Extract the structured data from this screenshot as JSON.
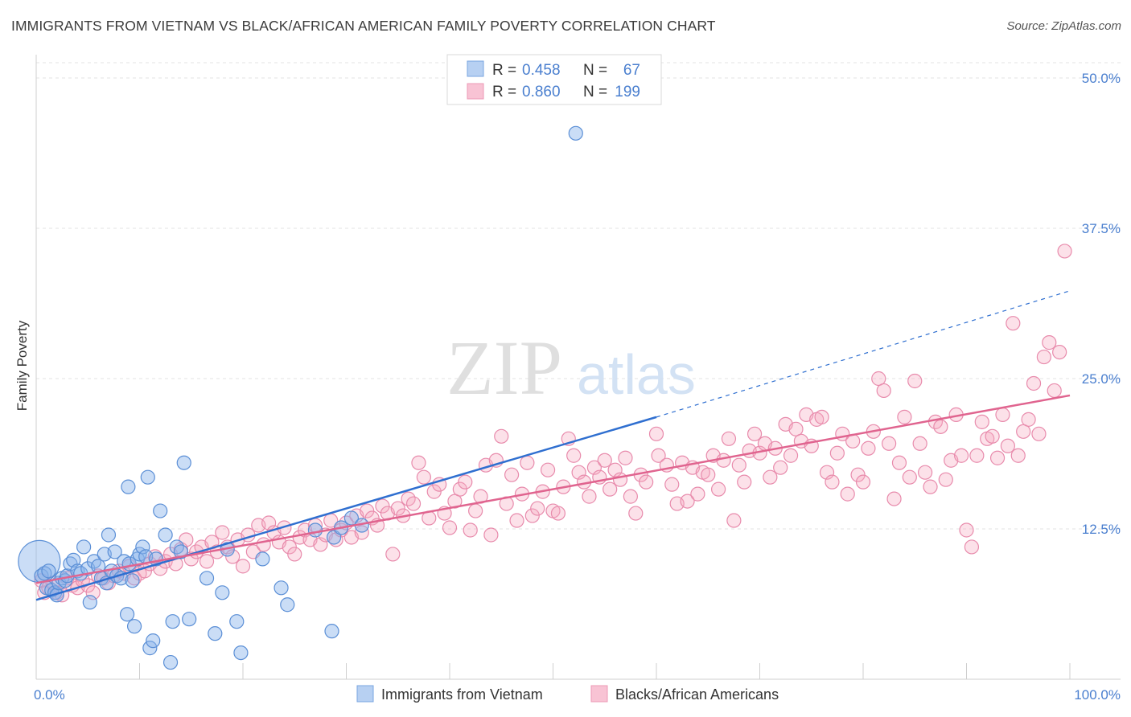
{
  "title": "IMMIGRANTS FROM VIETNAM VS BLACK/AFRICAN AMERICAN FAMILY POVERTY CORRELATION CHART",
  "source": "Source: ZipAtlas.com",
  "watermark": {
    "zip": "ZIP",
    "atlas": "atlas"
  },
  "chart_data": {
    "type": "scatter",
    "ylabel": "Family Poverty",
    "xlim": [
      0,
      100
    ],
    "ylim": [
      0,
      50
    ],
    "x_tick_labels": [
      {
        "value": 0,
        "label": "0.0%"
      },
      {
        "value": 100,
        "label": "100.0%"
      }
    ],
    "y_tick_labels": [
      {
        "value": 12.5,
        "label": "12.5%"
      },
      {
        "value": 25,
        "label": "25.0%"
      },
      {
        "value": 37.5,
        "label": "37.5%"
      },
      {
        "value": 50,
        "label": "50.0%"
      }
    ],
    "grid": true,
    "legend": {
      "placement": "top-center",
      "entries": [
        {
          "r_label": "R =",
          "r_value": "0.458",
          "n_label": "N =",
          "n_value": "67"
        },
        {
          "r_label": "R =",
          "r_value": "0.860",
          "n_label": "N =",
          "n_value": "199"
        }
      ]
    },
    "bottom_legend": [
      "Immigrants from Vietnam",
      "Blacks/African Americans"
    ],
    "series": [
      {
        "name": "Immigrants from Vietnam",
        "color": "#8ab4ea",
        "stroke": "#5b8fd6",
        "trend": {
          "x0": 0,
          "y0": 6.6,
          "x1": 60,
          "y1": 21.8,
          "dash_to_x": 100,
          "dash_to_y": 32.3,
          "color": "#2f6fd0"
        },
        "points": [
          [
            0.3,
            9.8
          ],
          [
            0.5,
            8.6
          ],
          [
            0.8,
            8.8
          ],
          [
            1.0,
            7.6
          ],
          [
            1.2,
            9.0
          ],
          [
            1.5,
            7.4
          ],
          [
            1.8,
            7.2
          ],
          [
            2.0,
            7.0
          ],
          [
            2.2,
            8.0
          ],
          [
            2.5,
            8.4
          ],
          [
            2.8,
            8.2
          ],
          [
            3.0,
            8.6
          ],
          [
            3.3,
            9.6
          ],
          [
            3.6,
            9.9
          ],
          [
            4.0,
            9.0
          ],
          [
            4.3,
            8.8
          ],
          [
            4.6,
            11.0
          ],
          [
            5.0,
            9.2
          ],
          [
            5.2,
            6.4
          ],
          [
            5.6,
            9.8
          ],
          [
            6.0,
            9.4
          ],
          [
            6.3,
            8.4
          ],
          [
            6.6,
            10.4
          ],
          [
            6.8,
            8.0
          ],
          [
            7.0,
            12.0
          ],
          [
            7.3,
            9.0
          ],
          [
            7.6,
            10.6
          ],
          [
            7.8,
            8.6
          ],
          [
            8.2,
            8.4
          ],
          [
            8.5,
            9.8
          ],
          [
            8.8,
            5.4
          ],
          [
            8.9,
            16.0
          ],
          [
            9.0,
            9.6
          ],
          [
            9.3,
            8.2
          ],
          [
            9.5,
            4.4
          ],
          [
            9.8,
            10.0
          ],
          [
            10.0,
            10.4
          ],
          [
            10.3,
            11.0
          ],
          [
            10.6,
            10.2
          ],
          [
            10.8,
            16.8
          ],
          [
            11.0,
            2.6
          ],
          [
            11.3,
            3.2
          ],
          [
            11.6,
            10.0
          ],
          [
            12.0,
            14.0
          ],
          [
            12.5,
            12.0
          ],
          [
            13.0,
            1.4
          ],
          [
            13.2,
            4.8
          ],
          [
            13.6,
            11.0
          ],
          [
            14.0,
            10.6
          ],
          [
            14.3,
            18.0
          ],
          [
            14.8,
            5.0
          ],
          [
            16.5,
            8.4
          ],
          [
            17.3,
            3.8
          ],
          [
            18.0,
            7.2
          ],
          [
            18.5,
            10.8
          ],
          [
            19.4,
            4.8
          ],
          [
            19.8,
            2.2
          ],
          [
            21.9,
            10.0
          ],
          [
            23.7,
            7.6
          ],
          [
            24.3,
            6.2
          ],
          [
            27.0,
            12.4
          ],
          [
            28.6,
            4.0
          ],
          [
            28.8,
            11.8
          ],
          [
            29.5,
            12.6
          ],
          [
            30.5,
            13.4
          ],
          [
            31.5,
            12.8
          ],
          [
            52.2,
            45.4
          ]
        ],
        "bubble_sizes": {
          "0": 26
        }
      },
      {
        "name": "Blacks/African Americans",
        "color": "#f5a9c1",
        "stroke": "#e88bac",
        "trend": {
          "x0": 0,
          "y0": 8.0,
          "x1": 100,
          "y1": 23.6,
          "color": "#e0648f"
        },
        "points": [
          [
            0.5,
            8.2
          ],
          [
            0.8,
            7.2
          ],
          [
            1.2,
            7.6
          ],
          [
            1.6,
            8.0
          ],
          [
            2.0,
            7.2
          ],
          [
            2.5,
            7.0
          ],
          [
            3.0,
            8.4
          ],
          [
            3.5,
            7.8
          ],
          [
            4.0,
            7.6
          ],
          [
            4.5,
            8.2
          ],
          [
            5.0,
            7.8
          ],
          [
            5.5,
            7.2
          ],
          [
            6.0,
            8.6
          ],
          [
            6.5,
            8.4
          ],
          [
            7.0,
            8.0
          ],
          [
            7.5,
            8.6
          ],
          [
            8.0,
            9.0
          ],
          [
            8.5,
            8.8
          ],
          [
            9.0,
            9.4
          ],
          [
            9.5,
            8.4
          ],
          [
            10.0,
            8.8
          ],
          [
            10.5,
            9.0
          ],
          [
            11.0,
            9.6
          ],
          [
            11.5,
            10.2
          ],
          [
            12.0,
            9.2
          ],
          [
            12.5,
            9.8
          ],
          [
            13.0,
            10.4
          ],
          [
            13.5,
            9.6
          ],
          [
            14.0,
            10.8
          ],
          [
            14.5,
            11.6
          ],
          [
            15.0,
            10.0
          ],
          [
            15.5,
            10.6
          ],
          [
            16.0,
            11.0
          ],
          [
            16.5,
            9.8
          ],
          [
            17.0,
            11.4
          ],
          [
            17.5,
            10.6
          ],
          [
            18.0,
            12.2
          ],
          [
            18.5,
            11.0
          ],
          [
            19.0,
            10.2
          ],
          [
            19.5,
            11.6
          ],
          [
            20.0,
            9.4
          ],
          [
            20.5,
            12.0
          ],
          [
            21.0,
            10.6
          ],
          [
            21.5,
            12.8
          ],
          [
            22.0,
            11.2
          ],
          [
            22.5,
            13.0
          ],
          [
            23.0,
            12.2
          ],
          [
            23.5,
            11.4
          ],
          [
            24.0,
            12.6
          ],
          [
            24.5,
            11.0
          ],
          [
            25.0,
            10.4
          ],
          [
            25.5,
            11.8
          ],
          [
            26.0,
            12.4
          ],
          [
            26.5,
            11.6
          ],
          [
            27.0,
            12.8
          ],
          [
            27.5,
            11.2
          ],
          [
            28.0,
            12.0
          ],
          [
            28.5,
            13.2
          ],
          [
            29.0,
            11.6
          ],
          [
            29.5,
            12.4
          ],
          [
            30.0,
            13.0
          ],
          [
            30.5,
            11.8
          ],
          [
            31.0,
            13.6
          ],
          [
            31.5,
            12.2
          ],
          [
            32.0,
            14.0
          ],
          [
            32.5,
            13.4
          ],
          [
            33.0,
            12.8
          ],
          [
            33.5,
            14.4
          ],
          [
            34.0,
            13.8
          ],
          [
            34.5,
            10.4
          ],
          [
            35.0,
            14.2
          ],
          [
            35.5,
            13.6
          ],
          [
            36.0,
            15.0
          ],
          [
            36.5,
            14.6
          ],
          [
            37.0,
            18.0
          ],
          [
            37.5,
            16.8
          ],
          [
            38.0,
            13.4
          ],
          [
            38.5,
            15.6
          ],
          [
            39.0,
            16.2
          ],
          [
            39.5,
            13.8
          ],
          [
            40.0,
            12.6
          ],
          [
            40.5,
            14.8
          ],
          [
            41.0,
            15.8
          ],
          [
            41.5,
            16.4
          ],
          [
            42.0,
            12.4
          ],
          [
            42.5,
            14.0
          ],
          [
            43.0,
            15.2
          ],
          [
            43.5,
            17.8
          ],
          [
            44.0,
            12.0
          ],
          [
            44.5,
            18.2
          ],
          [
            45.0,
            20.2
          ],
          [
            45.5,
            14.6
          ],
          [
            46.0,
            17.0
          ],
          [
            46.5,
            13.2
          ],
          [
            47.0,
            15.4
          ],
          [
            47.5,
            18.0
          ],
          [
            48.0,
            13.6
          ],
          [
            48.5,
            14.2
          ],
          [
            49.0,
            15.6
          ],
          [
            49.5,
            17.4
          ],
          [
            50.0,
            14.0
          ],
          [
            50.5,
            13.8
          ],
          [
            51.0,
            16.0
          ],
          [
            51.5,
            20.0
          ],
          [
            52.0,
            18.6
          ],
          [
            52.5,
            17.2
          ],
          [
            53.0,
            16.4
          ],
          [
            53.5,
            15.2
          ],
          [
            54.0,
            17.6
          ],
          [
            54.5,
            16.8
          ],
          [
            55.0,
            18.2
          ],
          [
            55.5,
            15.8
          ],
          [
            56.0,
            17.4
          ],
          [
            56.5,
            16.6
          ],
          [
            57.0,
            18.4
          ],
          [
            57.5,
            15.2
          ],
          [
            58.0,
            13.8
          ],
          [
            58.5,
            17.0
          ],
          [
            59.0,
            16.4
          ],
          [
            60.0,
            20.4
          ],
          [
            60.2,
            18.6
          ],
          [
            61.0,
            17.8
          ],
          [
            61.5,
            16.2
          ],
          [
            62.0,
            14.6
          ],
          [
            62.5,
            18.0
          ],
          [
            63.0,
            14.8
          ],
          [
            63.5,
            17.6
          ],
          [
            64.0,
            15.4
          ],
          [
            64.5,
            17.2
          ],
          [
            65.0,
            17.0
          ],
          [
            65.5,
            18.6
          ],
          [
            66.0,
            15.8
          ],
          [
            66.5,
            18.2
          ],
          [
            67.0,
            20.0
          ],
          [
            67.5,
            13.2
          ],
          [
            68.0,
            17.8
          ],
          [
            68.5,
            16.4
          ],
          [
            69.0,
            19.0
          ],
          [
            69.5,
            20.4
          ],
          [
            70.0,
            18.8
          ],
          [
            70.5,
            19.6
          ],
          [
            71.0,
            16.8
          ],
          [
            71.5,
            19.2
          ],
          [
            72.0,
            17.6
          ],
          [
            72.5,
            21.2
          ],
          [
            73.0,
            18.6
          ],
          [
            73.5,
            20.8
          ],
          [
            74.0,
            19.8
          ],
          [
            74.5,
            22.0
          ],
          [
            75.0,
            19.4
          ],
          [
            75.5,
            21.6
          ],
          [
            76.0,
            21.8
          ],
          [
            76.5,
            17.2
          ],
          [
            77.0,
            16.4
          ],
          [
            77.5,
            18.8
          ],
          [
            78.0,
            20.4
          ],
          [
            78.5,
            15.4
          ],
          [
            79.0,
            19.8
          ],
          [
            79.5,
            17.0
          ],
          [
            80.0,
            16.4
          ],
          [
            80.5,
            19.2
          ],
          [
            81.0,
            20.6
          ],
          [
            81.5,
            25.0
          ],
          [
            82.0,
            24.0
          ],
          [
            82.5,
            19.6
          ],
          [
            83.0,
            15.0
          ],
          [
            83.5,
            18.0
          ],
          [
            84.0,
            21.8
          ],
          [
            84.5,
            16.8
          ],
          [
            85.0,
            24.8
          ],
          [
            85.5,
            19.6
          ],
          [
            86.0,
            17.2
          ],
          [
            86.5,
            16.0
          ],
          [
            87.0,
            21.4
          ],
          [
            87.5,
            21.0
          ],
          [
            88.0,
            16.6
          ],
          [
            88.5,
            18.2
          ],
          [
            89.0,
            22.0
          ],
          [
            89.5,
            18.6
          ],
          [
            90.0,
            12.4
          ],
          [
            90.5,
            11.0
          ],
          [
            91.0,
            18.6
          ],
          [
            91.5,
            21.4
          ],
          [
            92.0,
            20.0
          ],
          [
            92.5,
            20.2
          ],
          [
            93.0,
            18.4
          ],
          [
            93.5,
            22.0
          ],
          [
            94.0,
            19.4
          ],
          [
            94.5,
            29.6
          ],
          [
            95.0,
            18.6
          ],
          [
            95.5,
            20.6
          ],
          [
            96.0,
            21.6
          ],
          [
            96.5,
            24.6
          ],
          [
            97.0,
            20.4
          ],
          [
            97.5,
            26.8
          ],
          [
            98.0,
            28.0
          ],
          [
            98.5,
            24.0
          ],
          [
            99.0,
            27.2
          ],
          [
            99.5,
            35.6
          ]
        ]
      }
    ]
  }
}
